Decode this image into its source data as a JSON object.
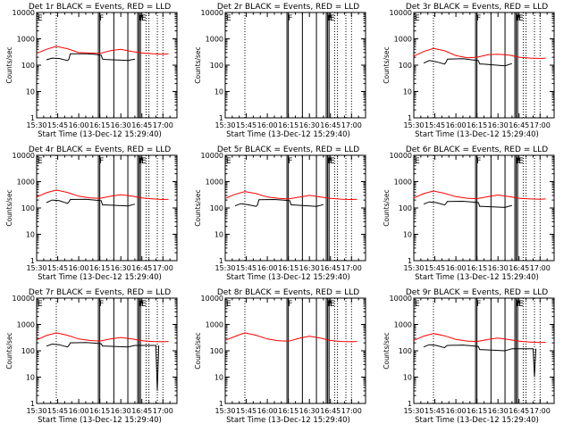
{
  "colors": {
    "events": "#000000",
    "lld": "#ff0000",
    "axes": "#000000",
    "background": "#ffffff"
  },
  "chart_data": {
    "type": "line",
    "scale": "log-y",
    "ylim": [
      1,
      10000
    ],
    "ytick_labels": [
      "1",
      "10",
      "100",
      "1000",
      "10000"
    ],
    "xlim_minutes": [
      0,
      100
    ],
    "xtick_labels": [
      "15:30",
      "15:45",
      "16:00",
      "16:15",
      "16:30",
      "16:45",
      "17:00"
    ],
    "ylabel": "Counts/sec",
    "xlabel": "Start Time (13-Dec-12 15:29:40)",
    "annotations": [
      "E",
      "F",
      "F",
      "F",
      "E"
    ],
    "panels": [
      {
        "title": "Det 1r BLACK = Events, RED = LLD",
        "series": [
          {
            "name": "Events",
            "x": [
              "15:37",
              "15:41",
              "15:46",
              "15:52",
              "15:53",
              "15:54",
              "16:05",
              "16:11",
              "16:16",
              "16:17",
              "16:19",
              "16:35",
              "16:40"
            ],
            "y": [
              160,
              185,
              180,
              150,
              170,
              270,
              270,
              260,
              240,
              170,
              165,
              150,
              170
            ]
          },
          {
            "name": "LLD",
            "x": [
              "15:30",
              "15:37",
              "15:44",
              "15:52",
              "16:00",
              "16:08",
              "16:15",
              "16:23",
              "16:30",
              "16:38",
              "16:45",
              "16:53",
              "17:00",
              "17:04"
            ],
            "y": [
              280,
              400,
              520,
              420,
              300,
              290,
              280,
              360,
              400,
              330,
              290,
              270,
              260,
              270
            ]
          }
        ]
      },
      {
        "title": "Det 2r BLACK = Events, RED = LLD",
        "series": []
      },
      {
        "title": "Det 3r BLACK = Events, RED = LLD",
        "series": [
          {
            "name": "Events",
            "x": [
              "15:37",
              "15:41",
              "15:46",
              "15:52",
              "15:53",
              "15:54",
              "16:05",
              "16:11",
              "16:16",
              "16:17",
              "16:19",
              "16:35",
              "16:40"
            ],
            "y": [
              120,
              150,
              135,
              110,
              130,
              170,
              175,
              160,
              150,
              110,
              110,
              95,
              115
            ]
          },
          {
            "name": "LLD",
            "x": [
              "15:30",
              "15:37",
              "15:44",
              "15:52",
              "16:00",
              "16:08",
              "16:15",
              "16:23",
              "16:30",
              "16:38",
              "16:45",
              "16:53",
              "17:00",
              "17:04"
            ],
            "y": [
              220,
              330,
              430,
              350,
              230,
              190,
              200,
              250,
              260,
              240,
              200,
              185,
              180,
              185
            ]
          }
        ]
      },
      {
        "title": "Det 4r BLACK = Events, RED = LLD",
        "series": [
          {
            "name": "Events",
            "x": [
              "15:37",
              "15:41",
              "15:46",
              "15:52",
              "15:53",
              "15:54",
              "16:05",
              "16:11",
              "16:16",
              "16:17",
              "16:19",
              "16:35",
              "16:40"
            ],
            "y": [
              160,
              200,
              190,
              150,
              170,
              210,
              215,
              200,
              190,
              130,
              130,
              120,
              140
            ]
          },
          {
            "name": "LLD",
            "x": [
              "15:30",
              "15:37",
              "15:44",
              "15:52",
              "16:00",
              "16:08",
              "16:15",
              "16:23",
              "16:30",
              "16:38",
              "16:45",
              "16:53",
              "17:00",
              "17:04"
            ],
            "y": [
              260,
              380,
              480,
              390,
              280,
              240,
              230,
              280,
              320,
              280,
              240,
              220,
              210,
              215
            ]
          }
        ]
      },
      {
        "title": "Det 5r BLACK = Events, RED = LLD",
        "series": [
          {
            "name": "Events",
            "x": [
              "15:37",
              "15:41",
              "15:46",
              "15:52",
              "15:53",
              "15:54",
              "16:05",
              "16:11",
              "16:16",
              "16:17",
              "16:19",
              "16:35",
              "16:40"
            ],
            "y": [
              120,
              145,
              135,
              115,
              130,
              205,
              210,
              200,
              190,
              130,
              130,
              115,
              135
            ]
          },
          {
            "name": "LLD",
            "x": [
              "15:30",
              "15:37",
              "15:44",
              "15:52",
              "16:00",
              "16:08",
              "16:15",
              "16:23",
              "16:30",
              "16:38",
              "16:45",
              "16:53",
              "17:00",
              "17:04"
            ],
            "y": [
              230,
              330,
              420,
              350,
              260,
              230,
              220,
              260,
              300,
              260,
              230,
              215,
              210,
              215
            ]
          }
        ]
      },
      {
        "title": "Det 6r BLACK = Events, RED = LLD",
        "series": [
          {
            "name": "Events",
            "x": [
              "15:37",
              "15:41",
              "15:46",
              "15:52",
              "15:53",
              "15:54",
              "16:05",
              "16:11",
              "16:16",
              "16:17",
              "16:19",
              "16:35",
              "16:40"
            ],
            "y": [
              140,
              170,
              160,
              130,
              150,
              175,
              180,
              170,
              160,
              115,
              115,
              105,
              125
            ]
          },
          {
            "name": "LLD",
            "x": [
              "15:30",
              "15:37",
              "15:44",
              "15:52",
              "16:00",
              "16:08",
              "16:15",
              "16:23",
              "16:30",
              "16:38",
              "16:45",
              "16:53",
              "17:00",
              "17:04"
            ],
            "y": [
              240,
              350,
              440,
              360,
              270,
              235,
              225,
              270,
              310,
              270,
              235,
              220,
              215,
              220
            ]
          }
        ]
      },
      {
        "title": "Det 7r BLACK = Events, RED = LLD",
        "series": [
          {
            "name": "Events",
            "x": [
              "15:37",
              "15:41",
              "15:46",
              "15:52",
              "15:53",
              "15:54",
              "16:05",
              "16:11",
              "16:16",
              "16:17",
              "16:19",
              "16:35",
              "16:40",
              "16:55",
              "16:56",
              "16:57"
            ],
            "y": [
              150,
              180,
              170,
              140,
              160,
              200,
              205,
              195,
              185,
              150,
              150,
              140,
              160,
              160,
              3,
              160
            ]
          },
          {
            "name": "LLD",
            "x": [
              "15:30",
              "15:37",
              "15:44",
              "15:52",
              "16:00",
              "16:08",
              "16:15",
              "16:23",
              "16:30",
              "16:38",
              "16:45",
              "16:53",
              "17:00",
              "17:04"
            ],
            "y": [
              260,
              380,
              480,
              390,
              280,
              245,
              235,
              285,
              320,
              280,
              240,
              225,
              220,
              225
            ]
          }
        ]
      },
      {
        "title": "Det 8r BLACK = Events, RED = LLD",
        "series": [
          {
            "name": "LLD",
            "x": [
              "15:30",
              "15:37",
              "15:44",
              "15:52",
              "16:00",
              "16:08",
              "16:15",
              "16:23",
              "16:30",
              "16:38",
              "16:45",
              "16:53",
              "17:00",
              "17:04"
            ],
            "y": [
              250,
              350,
              480,
              390,
              280,
              240,
              230,
              300,
              360,
              300,
              245,
              225,
              220,
              225
            ]
          }
        ]
      },
      {
        "title": "Det 9r BLACK = Events, RED = LLD",
        "series": [
          {
            "name": "Events",
            "x": [
              "15:37",
              "15:41",
              "15:46",
              "15:52",
              "15:53",
              "15:54",
              "16:05",
              "16:11",
              "16:16",
              "16:17",
              "16:19",
              "16:35",
              "16:40",
              "16:55",
              "16:56",
              "16:57"
            ],
            "y": [
              140,
              170,
              160,
              130,
              150,
              160,
              165,
              155,
              145,
              110,
              110,
              100,
              120,
              120,
              10,
              120
            ]
          },
          {
            "name": "LLD",
            "x": [
              "15:30",
              "15:37",
              "15:44",
              "15:52",
              "16:00",
              "16:08",
              "16:15",
              "16:23",
              "16:30",
              "16:38",
              "16:45",
              "16:53",
              "17:00",
              "17:04"
            ],
            "y": [
              250,
              360,
              450,
              370,
              270,
              235,
              225,
              270,
              305,
              265,
              230,
              215,
              205,
              210
            ]
          }
        ]
      }
    ],
    "vertical_markers": [
      {
        "time": "15:44",
        "style": "dotted"
      },
      {
        "time": "16:14",
        "style": "solid"
      },
      {
        "time": "16:15",
        "style": "solid"
      },
      {
        "time": "16:25",
        "style": "solid"
      },
      {
        "time": "16:35",
        "style": "solid"
      },
      {
        "time": "16:42",
        "style": "solid"
      },
      {
        "time": "16:43",
        "style": "solid"
      },
      {
        "time": "16:44",
        "style": "solid"
      },
      {
        "time": "16:48",
        "style": "dotted"
      },
      {
        "time": "16:50",
        "style": "dotted"
      },
      {
        "time": "16:56",
        "style": "dotted"
      },
      {
        "time": "17:00",
        "style": "dotted"
      }
    ]
  }
}
